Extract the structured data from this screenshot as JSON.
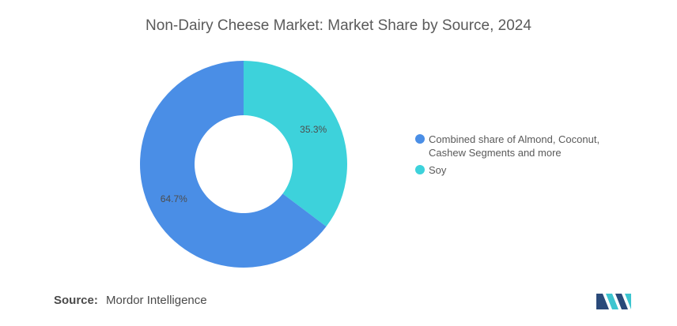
{
  "title": "Non-Dairy Cheese Market: Market Share by Source, 2024",
  "chart_data": {
    "type": "pie",
    "donut": true,
    "title": "Non-Dairy Cheese Market: Market Share by Source, 2024",
    "categories": [
      "Combined share of Almond, Coconut, Cashew Segments and more",
      "Soy"
    ],
    "values": [
      64.7,
      35.3
    ],
    "labels": [
      "64.7%",
      "35.3%"
    ],
    "colors": [
      "#4a8ee6",
      "#3dd2db"
    ],
    "legend_position": "right"
  },
  "source": {
    "label": "Source:",
    "text": "Mordor Intelligence"
  },
  "logo": {
    "icon": "mordor-intelligence-logo-icon",
    "colors": [
      "#2a4a7a",
      "#3dc5d0"
    ]
  }
}
